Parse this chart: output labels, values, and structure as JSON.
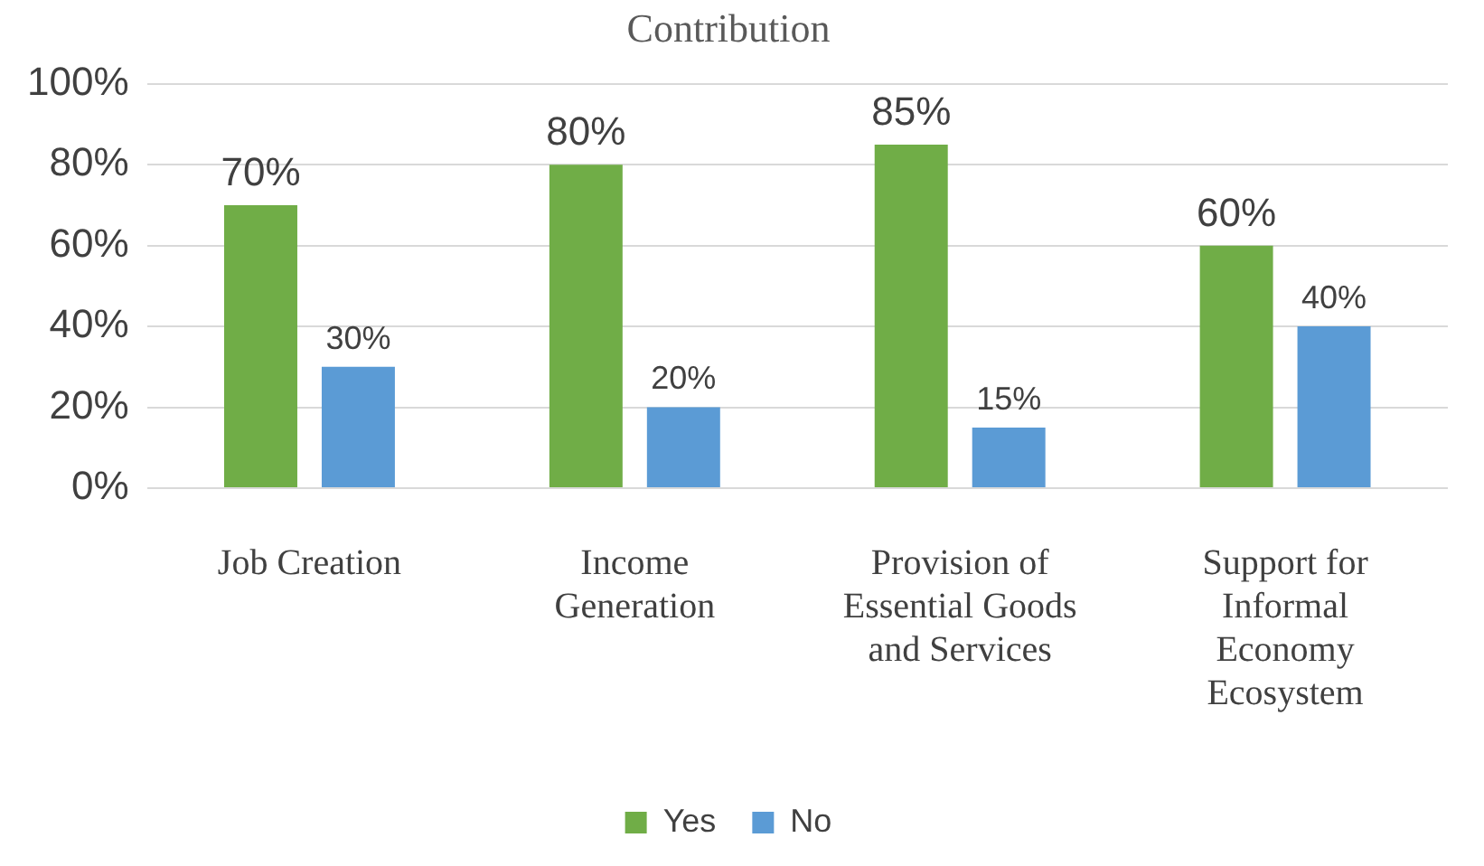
{
  "chart_data": {
    "type": "bar",
    "title": "Contribution",
    "categories": [
      "Job Creation",
      "Income Generation",
      "Provision of Essential Goods and Services",
      "Support for Informal Economy Ecosystem"
    ],
    "series": [
      {
        "name": "Yes",
        "color": "#70ad47",
        "values": [
          70,
          80,
          85,
          60
        ],
        "value_labels": [
          "70%",
          "80%",
          "85%",
          "60%"
        ]
      },
      {
        "name": "No",
        "color": "#5b9bd5",
        "values": [
          30,
          20,
          15,
          40
        ],
        "value_labels": [
          "30%",
          "20%",
          "15%",
          "40%"
        ]
      }
    ],
    "ylim": [
      0,
      100
    ],
    "yticks": [
      {
        "value": 0,
        "label": "0%"
      },
      {
        "value": 20,
        "label": "20%"
      },
      {
        "value": 40,
        "label": "40%"
      },
      {
        "value": 60,
        "label": "60%"
      },
      {
        "value": 80,
        "label": "80%"
      },
      {
        "value": 100,
        "label": "100%"
      }
    ],
    "grid": "y",
    "legend": "bottom"
  }
}
